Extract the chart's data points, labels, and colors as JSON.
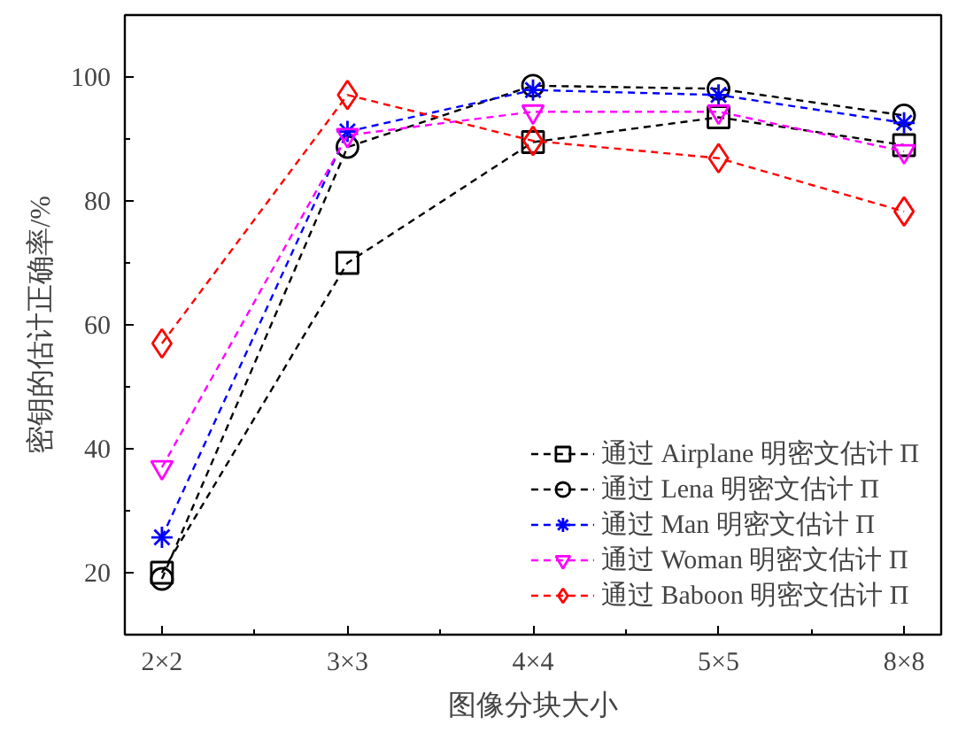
{
  "chart_data": {
    "type": "line",
    "xlabel": "图像分块大小",
    "ylabel": "密钥的估计正确率/%",
    "categories": [
      "2×2",
      "3×3",
      "4×4",
      "5×5",
      "8×8"
    ],
    "ylim": [
      10,
      110
    ],
    "yticks": [
      20,
      40,
      60,
      80,
      100
    ],
    "legend": "bottom right",
    "line_style": "dashed",
    "grid": false,
    "series": [
      {
        "name": "通过 Airplane 明密文估计 Π",
        "color": "#000000",
        "marker": "square",
        "values": [
          20,
          70,
          89.5,
          93.5,
          89
        ]
      },
      {
        "name": "通过 Lena 明密文估计 Π",
        "color": "#000000",
        "marker": "circle",
        "values": [
          19,
          88.7,
          98.6,
          98.1,
          93.8
        ]
      },
      {
        "name": "通过 Man 明密文估计 Π",
        "color": "#0000ff",
        "marker": "cross",
        "values": [
          25.7,
          91.2,
          97.9,
          97.1,
          92.6
        ]
      },
      {
        "name": "通过 Woman 明密文估计 Π",
        "color": "#ff00ff",
        "marker": "triangle",
        "values": [
          37,
          90.6,
          94.4,
          94.4,
          88
        ]
      },
      {
        "name": "通过 Baboon 明密文估计 Π",
        "color": "#ff0000",
        "marker": "diamond",
        "values": [
          57,
          97.1,
          89.7,
          86.9,
          78.3
        ]
      }
    ]
  }
}
